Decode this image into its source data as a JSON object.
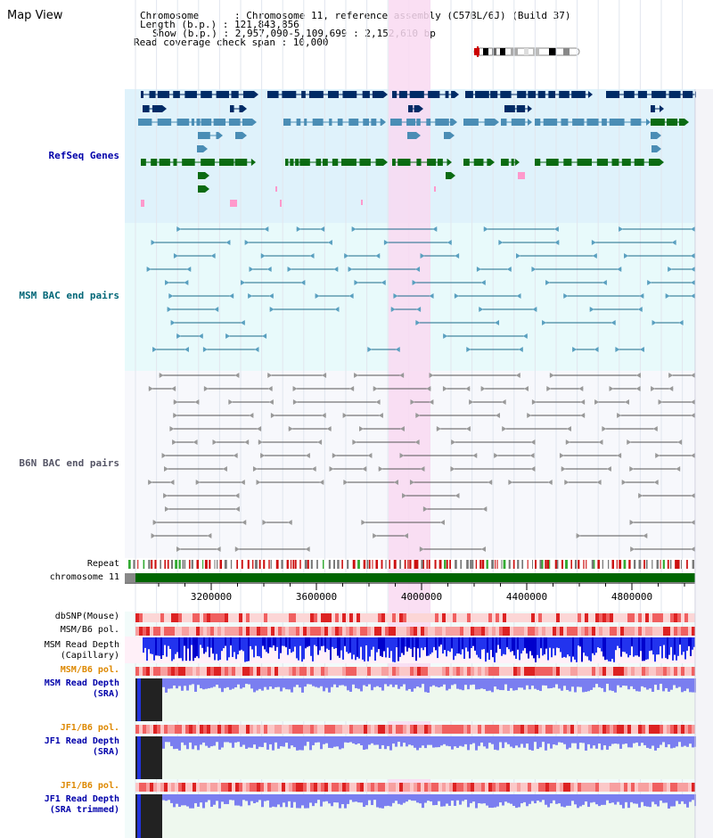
{
  "title": "Map View",
  "header": {
    "chromosome": "Chromosome      : Chromosome 11, reference assembly (C57BL/6J) (Build 37)",
    "length": "Length (b.p.) : 121,843,856",
    "show": "Show (b.p.) : 2,957,090-5,109,699 : 2,152,610 bp",
    "coverage": "Read coverage check span : 10,000"
  },
  "tracks": {
    "refseq": "RefSeq Genes",
    "msm_bac": "MSM BAC end pairs",
    "b6n_bac": "B6N BAC end pairs",
    "repeat": "Repeat",
    "chromosome": "chromosome 11",
    "dbsnp": "dbSNP(Mouse)",
    "msm_b6_pol_1": "MSM/B6 pol.",
    "msm_depth_cap_1": "MSM Read Depth",
    "msm_depth_cap_2": "(Capillary)",
    "msm_b6_pol_2": "MSM/B6 pol.",
    "msm_depth_sra_1": "MSM Read Depth",
    "msm_depth_sra_2": "(SRA)",
    "jf1_b6_pol_1": "JF1/B6 pol.",
    "jf1_depth_sra_1": "JF1 Read Depth",
    "jf1_depth_sra_2": "(SRA)",
    "jf1_b6_pol_2": "JF1/B6 pol.",
    "jf1_depth_trim_1": "JF1 Read Depth",
    "jf1_depth_trim_2": "(SRA trimmed)"
  },
  "axis_ticks": [
    "3200000",
    "3600000",
    "4000000",
    "4400000",
    "4800000"
  ],
  "colors": {
    "refseq_bg": "#dff2fb",
    "msm_bg": "#e8fafb",
    "b6n_bg": "#f7f8fc",
    "highlight": "#f9d9f1",
    "label_blue": "#0000aa",
    "label_teal": "#006677",
    "label_gray": "#555566",
    "label_orange": "#dd8800",
    "chrom_green": "#006600"
  }
}
